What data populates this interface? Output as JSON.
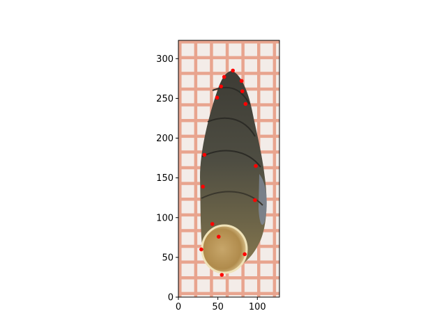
{
  "chart_data": {
    "type": "scatter",
    "title": "",
    "xlabel": "",
    "ylabel": "",
    "xlim": [
      0,
      128
    ],
    "ylim": [
      0,
      323
    ],
    "grid": false,
    "background_image": "snail-shell-photo-on-grid-paper",
    "x_ticks": [
      0,
      50,
      100
    ],
    "y_ticks": [
      0,
      50,
      100,
      150,
      200,
      250,
      300
    ],
    "series": [
      {
        "color": "#ff0000",
        "points": [
          {
            "x": 69,
            "y": 285
          },
          {
            "x": 58,
            "y": 277
          },
          {
            "x": 80,
            "y": 272
          },
          {
            "x": 54,
            "y": 265
          },
          {
            "x": 81,
            "y": 259
          },
          {
            "x": 49,
            "y": 251
          },
          {
            "x": 85,
            "y": 243
          },
          {
            "x": 33,
            "y": 179
          },
          {
            "x": 98,
            "y": 165
          },
          {
            "x": 31,
            "y": 139
          },
          {
            "x": 97,
            "y": 122
          },
          {
            "x": 43,
            "y": 92
          },
          {
            "x": 51,
            "y": 76
          },
          {
            "x": 29,
            "y": 60
          },
          {
            "x": 84,
            "y": 54
          },
          {
            "x": 55,
            "y": 28
          }
        ]
      }
    ]
  }
}
